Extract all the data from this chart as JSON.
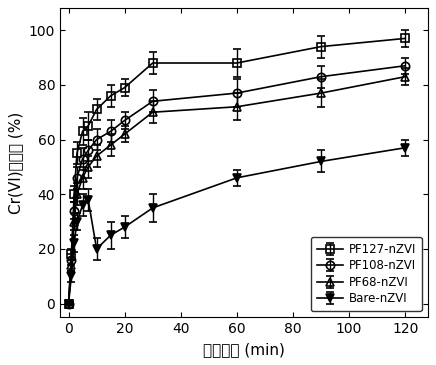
{
  "title": "",
  "xlabel": "反应时间 (min)",
  "ylabel": "Cr(VI)去除率 (%)",
  "xlim": [
    -3,
    128
  ],
  "ylim": [
    -5,
    108
  ],
  "xticks": [
    0,
    20,
    40,
    60,
    80,
    100,
    120
  ],
  "yticks": [
    0,
    20,
    40,
    60,
    80,
    100
  ],
  "series": [
    {
      "label": "PF127-nZVI",
      "marker": "s",
      "marker_fill": "none",
      "marker_edge": "black",
      "line_color": "black",
      "x": [
        0,
        1,
        2,
        3,
        5,
        7,
        10,
        15,
        20,
        30,
        60,
        90,
        120
      ],
      "y": [
        0,
        18,
        40,
        55,
        63,
        65,
        71,
        76,
        79,
        88,
        88,
        94,
        97
      ],
      "yerr": [
        0,
        2,
        3,
        4,
        5,
        5,
        4,
        4,
        3,
        4,
        5,
        4,
        3
      ]
    },
    {
      "label": "PF108-nZVI",
      "marker": "o",
      "marker_fill": "none",
      "marker_edge": "black",
      "line_color": "black",
      "x": [
        0,
        1,
        2,
        3,
        5,
        7,
        10,
        15,
        20,
        30,
        60,
        90,
        120
      ],
      "y": [
        0,
        16,
        34,
        46,
        53,
        56,
        60,
        63,
        67,
        74,
        77,
        83,
        87
      ],
      "yerr": [
        0,
        2,
        3,
        4,
        4,
        4,
        4,
        4,
        3,
        4,
        5,
        4,
        3
      ]
    },
    {
      "label": "PF68-nZVI",
      "marker": "^",
      "marker_fill": "none",
      "marker_edge": "black",
      "line_color": "black",
      "x": [
        0,
        1,
        2,
        3,
        5,
        7,
        10,
        15,
        20,
        30,
        60,
        90,
        120
      ],
      "y": [
        0,
        14,
        30,
        40,
        46,
        50,
        54,
        58,
        62,
        70,
        72,
        77,
        83
      ],
      "yerr": [
        0,
        2,
        3,
        4,
        4,
        4,
        4,
        4,
        3,
        4,
        5,
        5,
        3
      ]
    },
    {
      "label": "Bare-nZVI",
      "marker": "v",
      "marker_fill": "black",
      "marker_edge": "black",
      "line_color": "black",
      "x": [
        0,
        1,
        2,
        3,
        5,
        7,
        10,
        15,
        20,
        30,
        60,
        90,
        120
      ],
      "y": [
        0,
        10,
        22,
        30,
        36,
        38,
        20,
        25,
        28,
        35,
        46,
        52,
        57
      ],
      "yerr": [
        0,
        2,
        3,
        3,
        4,
        4,
        4,
        5,
        4,
        5,
        3,
        4,
        3
      ]
    }
  ],
  "legend_loc": "lower right",
  "background_color": "#ffffff",
  "font_size": 11,
  "tick_font_size": 10,
  "marker_size": 6
}
